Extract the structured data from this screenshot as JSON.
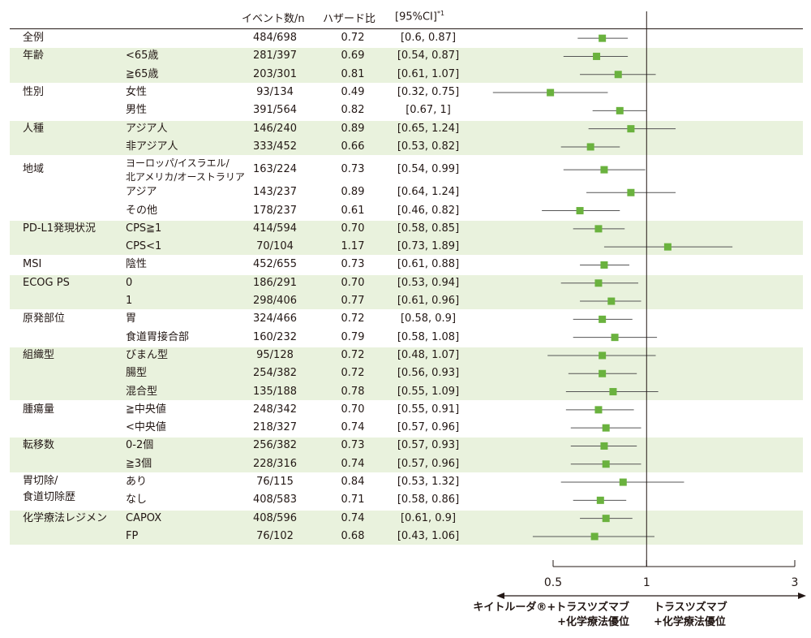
{
  "headers": {
    "events": "イベント数/n",
    "hr": "ハザード比",
    "ci": "[95%CI]",
    "ci_note": "*1"
  },
  "chart_data": {
    "type": "forest",
    "x_scale": "log",
    "x_ticks": [
      0.5,
      1,
      3
    ],
    "x_tick_labels": [
      "0.5",
      "1",
      "3"
    ],
    "xlim": [
      0.5,
      3
    ],
    "reference_line": 1,
    "favors_left": [
      "キイトルーダ®+トラスツズマブ",
      "+化学療法優位"
    ],
    "favors_right": [
      "トラスツズマブ",
      "+化学療法優位"
    ],
    "groups": [
      {
        "label": "全例",
        "rows": [
          {
            "sub": "",
            "events": "484/698",
            "hr": 0.72,
            "hr_text": "0.72",
            "ci": [
              0.6,
              0.87
            ],
            "ci_text": "[0.6, 0.87]"
          }
        ]
      },
      {
        "label": "年齢",
        "rows": [
          {
            "sub": "<65歳",
            "events": "281/397",
            "hr": 0.69,
            "hr_text": "0.69",
            "ci": [
              0.54,
              0.87
            ],
            "ci_text": "[0.54, 0.87]"
          },
          {
            "sub": "≧65歳",
            "events": "203/301",
            "hr": 0.81,
            "hr_text": "0.81",
            "ci": [
              0.61,
              1.07
            ],
            "ci_text": "[0.61, 1.07]"
          }
        ]
      },
      {
        "label": "性別",
        "rows": [
          {
            "sub": "女性",
            "events": "93/134",
            "hr": 0.49,
            "hr_text": "0.49",
            "ci": [
              0.32,
              0.75
            ],
            "ci_text": "[0.32, 0.75]"
          },
          {
            "sub": "男性",
            "events": "391/564",
            "hr": 0.82,
            "hr_text": "0.82",
            "ci": [
              0.67,
              1
            ],
            "ci_text": "[0.67, 1]"
          }
        ]
      },
      {
        "label": "人種",
        "rows": [
          {
            "sub": "アジア人",
            "events": "146/240",
            "hr": 0.89,
            "hr_text": "0.89",
            "ci": [
              0.65,
              1.24
            ],
            "ci_text": "[0.65, 1.24]"
          },
          {
            "sub": "非アジア人",
            "events": "333/452",
            "hr": 0.66,
            "hr_text": "0.66",
            "ci": [
              0.53,
              0.82
            ],
            "ci_text": "[0.53, 0.82]"
          }
        ]
      },
      {
        "label": "地域",
        "rows": [
          {
            "sub": "ヨーロッパ/イスラエル/",
            "sub2": "北アメリカ/オーストラリア",
            "events": "163/224",
            "hr": 0.73,
            "hr_text": "0.73",
            "ci": [
              0.54,
              0.99
            ],
            "ci_text": "[0.54, 0.99]"
          },
          {
            "sub": "アジア",
            "events": "143/237",
            "hr": 0.89,
            "hr_text": "0.89",
            "ci": [
              0.64,
              1.24
            ],
            "ci_text": "[0.64, 1.24]"
          },
          {
            "sub": "その他",
            "events": "178/237",
            "hr": 0.61,
            "hr_text": "0.61",
            "ci": [
              0.46,
              0.82
            ],
            "ci_text": "[0.46, 0.82]"
          }
        ]
      },
      {
        "label": "PD-L1発現状況",
        "rows": [
          {
            "sub": "CPS≧1",
            "events": "414/594",
            "hr": 0.7,
            "hr_text": "0.70",
            "ci": [
              0.58,
              0.85
            ],
            "ci_text": "[0.58, 0.85]"
          },
          {
            "sub": "CPS<1",
            "events": "70/104",
            "hr": 1.17,
            "hr_text": "1.17",
            "ci": [
              0.73,
              1.89
            ],
            "ci_text": "[0.73, 1.89]"
          }
        ]
      },
      {
        "label": "MSI",
        "rows": [
          {
            "sub": "陰性",
            "events": "452/655",
            "hr": 0.73,
            "hr_text": "0.73",
            "ci": [
              0.61,
              0.88
            ],
            "ci_text": "[0.61, 0.88]"
          }
        ]
      },
      {
        "label": "ECOG PS",
        "rows": [
          {
            "sub": "0",
            "events": "186/291",
            "hr": 0.7,
            "hr_text": "0.70",
            "ci": [
              0.53,
              0.94
            ],
            "ci_text": "[0.53, 0.94]"
          },
          {
            "sub": "1",
            "events": "298/406",
            "hr": 0.77,
            "hr_text": "0.77",
            "ci": [
              0.61,
              0.96
            ],
            "ci_text": "[0.61, 0.96]"
          }
        ]
      },
      {
        "label": "原発部位",
        "rows": [
          {
            "sub": "胃",
            "events": "324/466",
            "hr": 0.72,
            "hr_text": "0.72",
            "ci": [
              0.58,
              0.9
            ],
            "ci_text": "[0.58, 0.9]"
          },
          {
            "sub": "食道胃接合部",
            "events": "160/232",
            "hr": 0.79,
            "hr_text": "0.79",
            "ci": [
              0.58,
              1.08
            ],
            "ci_text": "[0.58, 1.08]"
          }
        ]
      },
      {
        "label": "組織型",
        "rows": [
          {
            "sub": "びまん型",
            "events": "95/128",
            "hr": 0.72,
            "hr_text": "0.72",
            "ci": [
              0.48,
              1.07
            ],
            "ci_text": "[0.48, 1.07]"
          },
          {
            "sub": "腸型",
            "events": "254/382",
            "hr": 0.72,
            "hr_text": "0.72",
            "ci": [
              0.56,
              0.93
            ],
            "ci_text": "[0.56, 0.93]"
          },
          {
            "sub": "混合型",
            "events": "135/188",
            "hr": 0.78,
            "hr_text": "0.78",
            "ci": [
              0.55,
              1.09
            ],
            "ci_text": "[0.55, 1.09]"
          }
        ]
      },
      {
        "label": "腫瘍量",
        "rows": [
          {
            "sub": "≧中央値",
            "events": "248/342",
            "hr": 0.7,
            "hr_text": "0.70",
            "ci": [
              0.55,
              0.91
            ],
            "ci_text": "[0.55, 0.91]"
          },
          {
            "sub": "<中央値",
            "events": "218/327",
            "hr": 0.74,
            "hr_text": "0.74",
            "ci": [
              0.57,
              0.96
            ],
            "ci_text": "[0.57, 0.96]"
          }
        ]
      },
      {
        "label": "転移数",
        "rows": [
          {
            "sub": "0-2個",
            "events": "256/382",
            "hr": 0.73,
            "hr_text": "0.73",
            "ci": [
              0.57,
              0.93
            ],
            "ci_text": "[0.57, 0.93]"
          },
          {
            "sub": "≧3個",
            "events": "228/316",
            "hr": 0.74,
            "hr_text": "0.74",
            "ci": [
              0.57,
              0.96
            ],
            "ci_text": "[0.57, 0.96]"
          }
        ]
      },
      {
        "label": "胃切除/",
        "label2": "食道切除歴",
        "rows": [
          {
            "sub": "あり",
            "events": "76/115",
            "hr": 0.84,
            "hr_text": "0.84",
            "ci": [
              0.53,
              1.32
            ],
            "ci_text": "[0.53, 1.32]"
          },
          {
            "sub": "なし",
            "events": "408/583",
            "hr": 0.71,
            "hr_text": "0.71",
            "ci": [
              0.58,
              0.86
            ],
            "ci_text": "[0.58, 0.86]"
          }
        ]
      },
      {
        "label": "化学療法レジメン",
        "rows": [
          {
            "sub": "CAPOX",
            "events": "408/596",
            "hr": 0.74,
            "hr_text": "0.74",
            "ci": [
              0.61,
              0.9
            ],
            "ci_text": "[0.61, 0.9]"
          },
          {
            "sub": "FP",
            "events": "76/102",
            "hr": 0.68,
            "hr_text": "0.68",
            "ci": [
              0.43,
              1.06
            ],
            "ci_text": "[0.43, 1.06]"
          }
        ]
      }
    ]
  },
  "colors": {
    "band": "#e9f2dd",
    "marker": "#6ab23e",
    "line": "#231815",
    "ci_line": "#555555"
  }
}
